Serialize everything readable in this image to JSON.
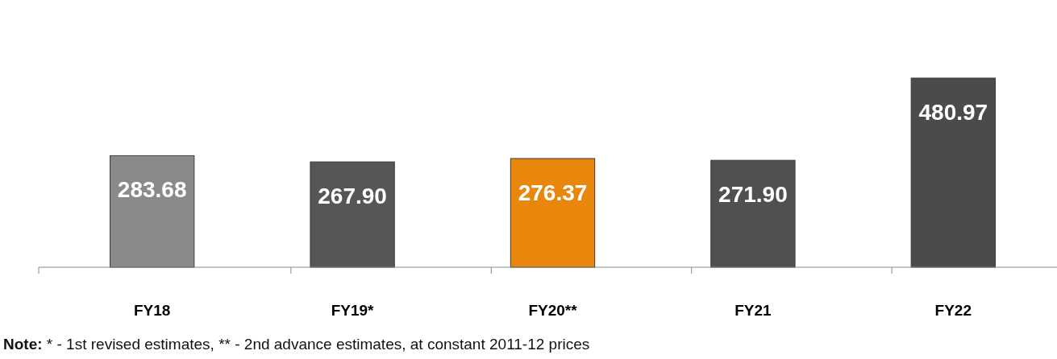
{
  "chart_data": {
    "type": "bar",
    "categories": [
      "FY18",
      "FY19*",
      "FY20**",
      "FY21",
      "FY22"
    ],
    "values": [
      283.68,
      267.9,
      276.37,
      271.9,
      480.97
    ],
    "value_labels": [
      "283.68",
      "267.90",
      "276.37",
      "271.90",
      "480.97"
    ],
    "colors": [
      "#8a8a8a",
      "#565656",
      "#e8870c",
      "#505050",
      "#4b4b4b"
    ],
    "annotations": [
      "Note: * - 1st revised estimates, ** - 2nd advance estimates, at constant 2011-12 prices"
    ]
  }
}
